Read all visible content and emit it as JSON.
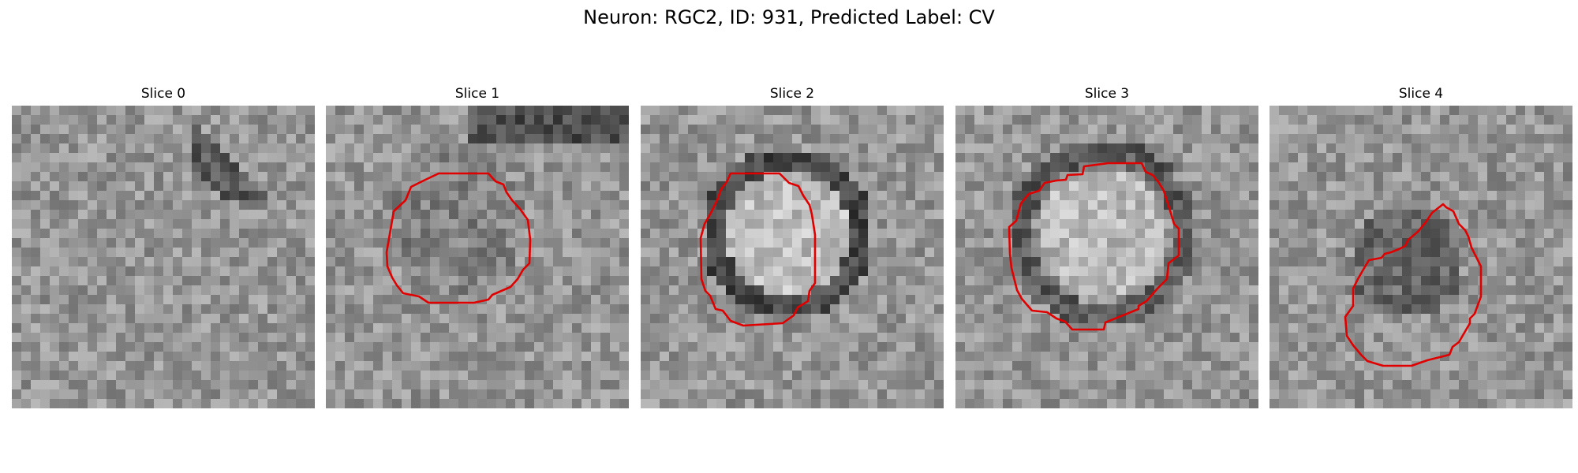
{
  "figure": {
    "title": "Neuron: RGC2, ID: 931, Predicted Label: CV",
    "contour_color": "#e00000"
  },
  "panels": [
    {
      "title": "Slice 0",
      "has_contour": false
    },
    {
      "title": "Slice 1",
      "has_contour": true
    },
    {
      "title": "Slice 2",
      "has_contour": true
    },
    {
      "title": "Slice 3",
      "has_contour": true
    },
    {
      "title": "Slice 4",
      "has_contour": true
    }
  ]
}
